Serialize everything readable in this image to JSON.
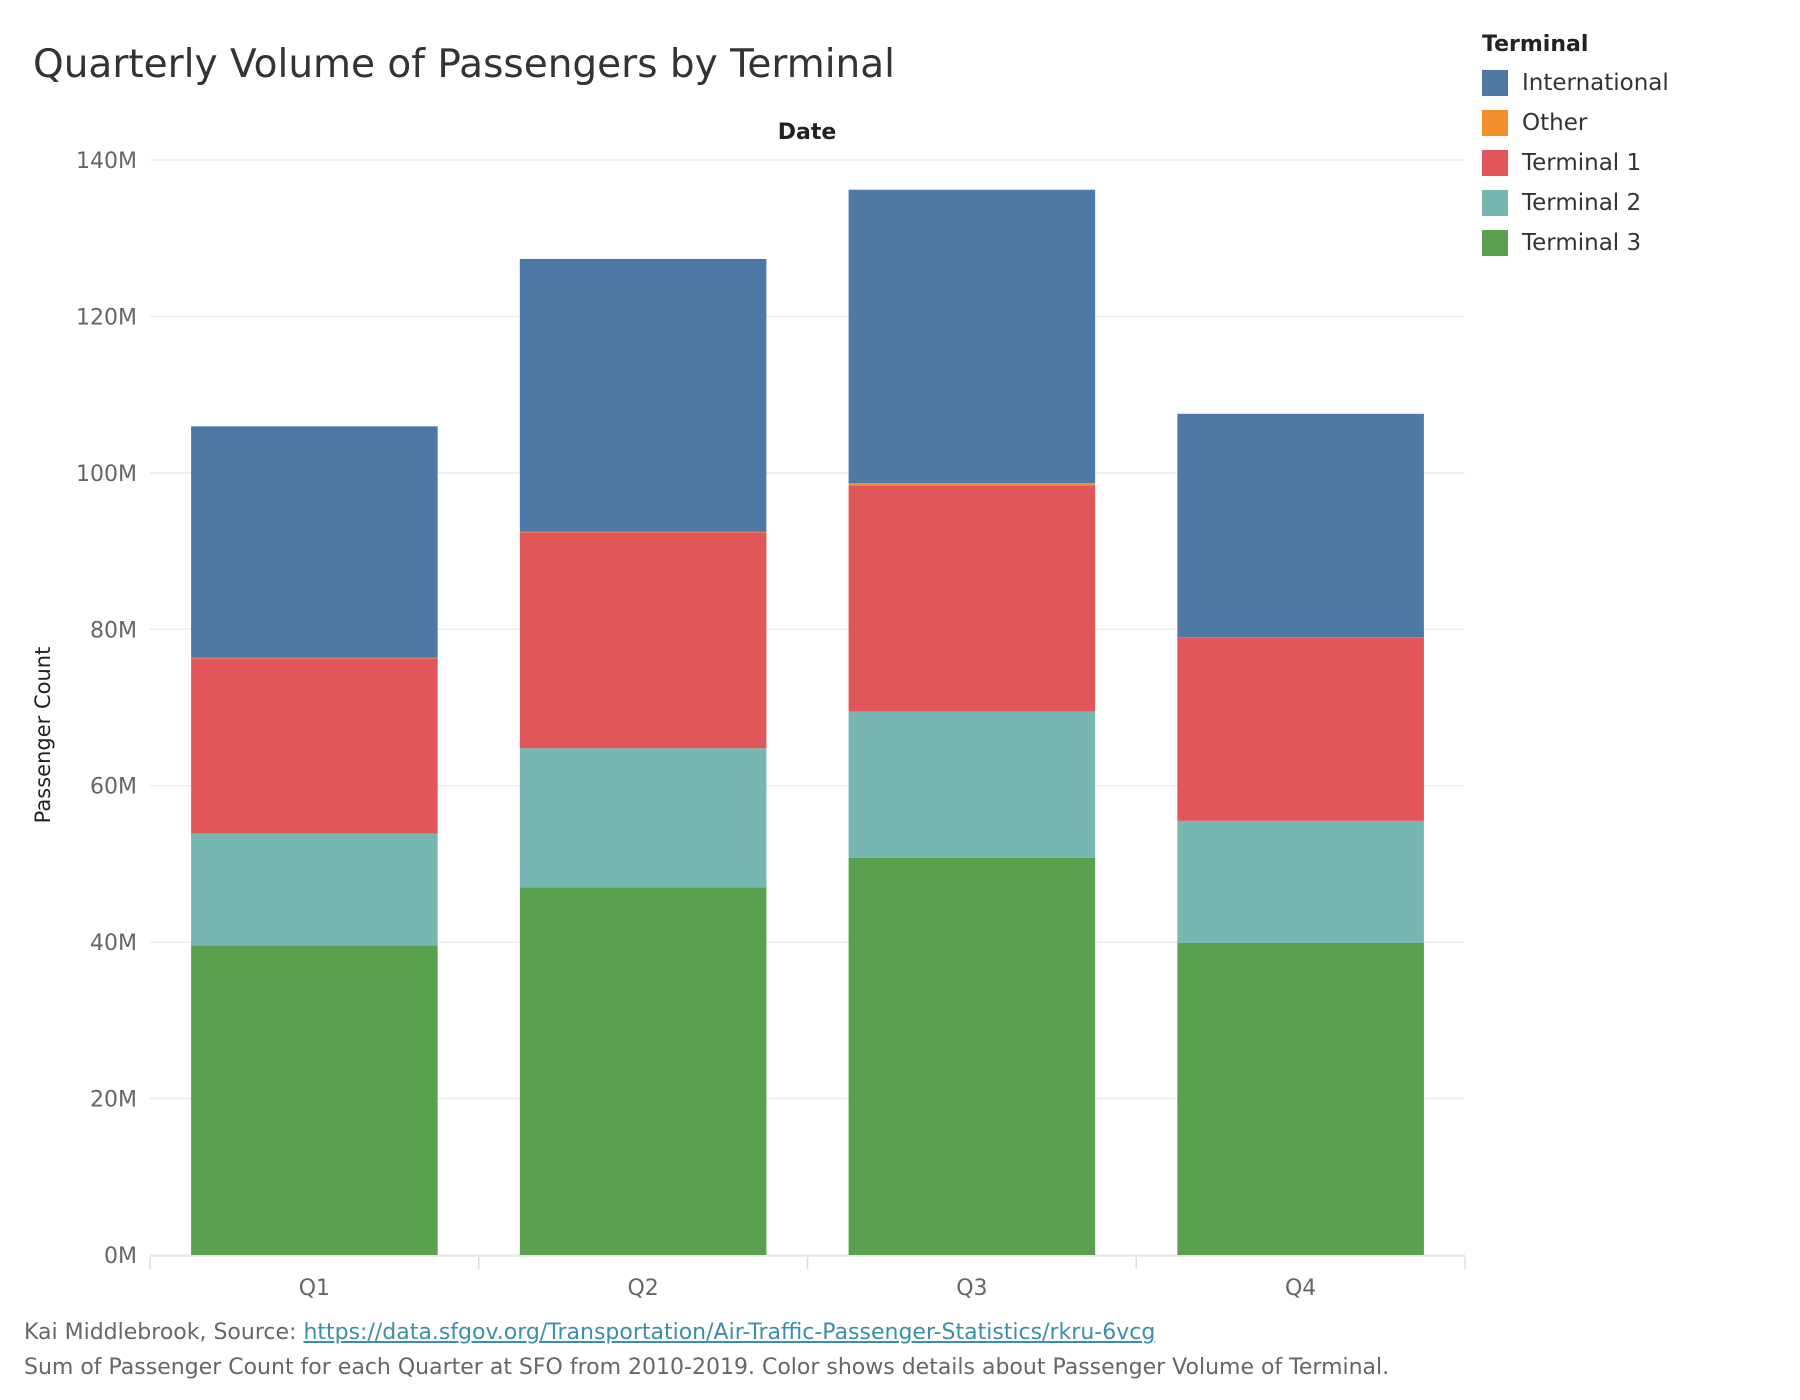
{
  "title": "Quarterly Volume of Passengers by Terminal",
  "legend": {
    "title": "Terminal",
    "items": [
      {
        "label": "International",
        "color": "#4e79a7"
      },
      {
        "label": "Other",
        "color": "#f28e2b"
      },
      {
        "label": "Terminal 1",
        "color": "#e15759"
      },
      {
        "label": "Terminal 2",
        "color": "#76b7b2"
      },
      {
        "label": "Terminal 3",
        "color": "#59a14f"
      }
    ]
  },
  "footer": {
    "line1_prefix": "Kai Middlebrook, Source: ",
    "link_text": "https://data.sfgov.org/Transportation/Air-Traffic-Passenger-Statistics/rkru-6vcg",
    "line2": "Sum of Passenger Count for each  Quarter at SFO from 2010-2019.  Color shows details about Passenger Volume of Terminal."
  },
  "chart_data": {
    "type": "bar",
    "stacked": true,
    "title": "Quarterly Volume of Passengers by Terminal",
    "column_header": "Date",
    "xlabel": "",
    "ylabel": "Passenger Count",
    "categories": [
      "Q1",
      "Q2",
      "Q3",
      "Q4"
    ],
    "yticks": [
      "0M",
      "20M",
      "40M",
      "60M",
      "80M",
      "100M",
      "120M",
      "140M"
    ],
    "ylim": [
      0,
      140
    ],
    "unit": "M",
    "grid": true,
    "legend_position": "top-right",
    "series": [
      {
        "name": "Terminal 3",
        "color": "#59a14f",
        "values": [
          39.6,
          47.0,
          50.8,
          39.9
        ]
      },
      {
        "name": "Terminal 2",
        "color": "#76b7b2",
        "values": [
          14.3,
          17.8,
          18.7,
          15.6
        ]
      },
      {
        "name": "Terminal 1",
        "color": "#e15759",
        "values": [
          22.4,
          27.6,
          28.9,
          23.4
        ]
      },
      {
        "name": "Other",
        "color": "#f28e2b",
        "values": [
          0.05,
          0.05,
          0.3,
          0.05
        ]
      },
      {
        "name": "International",
        "color": "#4e79a7",
        "values": [
          29.6,
          34.9,
          37.5,
          28.6
        ]
      }
    ]
  }
}
